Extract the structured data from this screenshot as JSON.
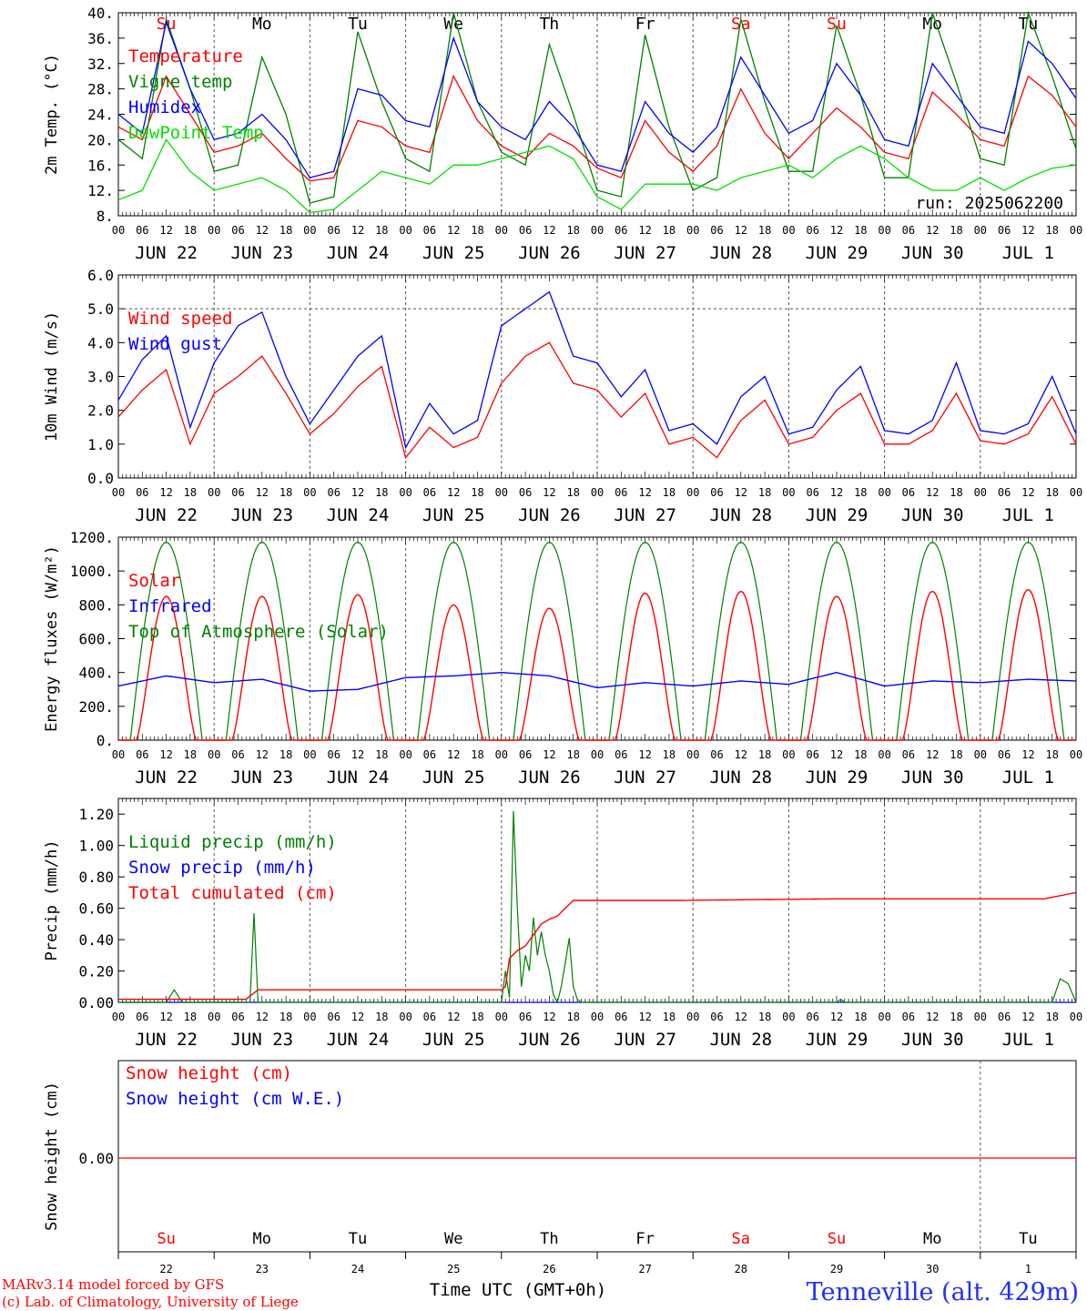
{
  "page": {
    "x_axis_title": "Time UTC (GMT+0h)",
    "station": "Tenneville (alt. 429m)",
    "credits": [
      "MARv3.14 model forced by GFS",
      "(c) Lab. of Climatology, University of Liege"
    ]
  },
  "colors": {
    "red": "#ff0000",
    "green": "#008000",
    "blue": "#0000ff",
    "lightgreen": "#00e000",
    "grey": "#808080"
  },
  "x_axis": {
    "hour_ticks": [
      "00",
      "06",
      "12",
      "18"
    ],
    "end_tick": "00",
    "date_labels": [
      "JUN 22",
      "JUN 23",
      "JUN 24",
      "JUN 25",
      "JUN 26",
      "JUN 27",
      "JUN 28",
      "JUN 29",
      "JUN 30",
      "JUL  1"
    ],
    "weekday_labels": [
      "Su",
      "Mo",
      "Tu",
      "We",
      "Th",
      "Fr",
      "Sa",
      "Su",
      "Mo",
      "Tu"
    ],
    "weekend_days": [
      0,
      6,
      7
    ],
    "day_numbers": [
      "22",
      "23",
      "24",
      "25",
      "26",
      "27",
      "28",
      "29",
      "30",
      "1"
    ]
  },
  "chart_data": [
    {
      "id": "temp",
      "type": "line",
      "ylabel": "2m Temp. (°C)",
      "ylim": [
        8,
        40
      ],
      "yticks": [
        "8.",
        "12.",
        "16.",
        "20.",
        "24.",
        "28.",
        "32.",
        "36.",
        "40."
      ],
      "annotation": "run: 2025062200",
      "legend": [
        {
          "name": "Temperature",
          "color": "#ff0000"
        },
        {
          "name": "Vigne temp",
          "color": "#008000"
        },
        {
          "name": "Humidex",
          "color": "#0000ff"
        },
        {
          "name": "DewPoint Temp",
          "color": "#00e000"
        }
      ],
      "x_hours": [
        0,
        6,
        12,
        18,
        24,
        30,
        36,
        42,
        48,
        54,
        60,
        66,
        72,
        78,
        84,
        90,
        96,
        102,
        108,
        114,
        120,
        126,
        132,
        138,
        144,
        150,
        156,
        162,
        168,
        174,
        180,
        186,
        192,
        198,
        204,
        210,
        216,
        222,
        228,
        234,
        240
      ],
      "series": [
        {
          "name": "Temperature",
          "color": "#ff0000",
          "values": [
            22,
            20,
            30,
            24,
            18,
            19,
            21,
            17,
            13.5,
            14,
            23,
            22,
            19,
            18,
            30,
            23,
            19,
            17,
            21,
            19,
            15.5,
            14,
            23,
            18,
            15,
            19,
            28,
            21,
            17,
            21,
            25,
            22,
            18,
            17,
            27.5,
            24,
            20,
            19,
            30,
            27,
            22
          ]
        },
        {
          "name": "Vigne temp",
          "color": "#008000",
          "values": [
            20,
            17,
            39,
            28,
            15,
            16,
            33,
            24,
            10,
            11,
            37,
            26,
            17,
            15,
            40,
            26,
            18,
            16,
            35,
            24,
            12,
            11,
            36.5,
            22,
            12,
            14,
            39,
            26,
            15,
            15,
            38,
            27,
            14,
            14,
            40,
            29,
            17,
            16,
            40,
            30,
            18.5
          ]
        },
        {
          "name": "Humidex",
          "color": "#0000ff",
          "values": [
            24,
            21,
            38.5,
            28,
            20,
            21,
            24,
            20,
            14,
            15,
            28,
            27,
            23,
            22,
            36,
            26,
            22,
            20,
            26,
            22,
            16,
            15,
            26,
            21,
            18,
            22,
            33,
            27,
            21,
            23,
            32,
            27,
            20,
            19,
            32,
            27,
            22,
            21,
            35.5,
            32,
            26.5
          ]
        },
        {
          "name": "DewPoint Temp",
          "color": "#00e000",
          "values": [
            10.5,
            12,
            20,
            15,
            12,
            13,
            14,
            12,
            8.5,
            9,
            12,
            15,
            14,
            13,
            16,
            16,
            17,
            18,
            19,
            17,
            11,
            9,
            13,
            13,
            13,
            12,
            14,
            15,
            16,
            14,
            17,
            19,
            17,
            14,
            12,
            12,
            14,
            12,
            14,
            15.5,
            16
          ]
        }
      ]
    },
    {
      "id": "wind",
      "type": "line",
      "ylabel": "10m Wind (m/s)",
      "ylim": [
        0,
        6
      ],
      "yticks": [
        "0.0",
        "1.0",
        "2.0",
        "3.0",
        "4.0",
        "5.0",
        "6.0"
      ],
      "ref_line": 5.0,
      "legend": [
        {
          "name": "Wind speed",
          "color": "#ff0000"
        },
        {
          "name": "Wind gust",
          "color": "#0000ff"
        }
      ],
      "x_hours": [
        0,
        6,
        12,
        18,
        24,
        30,
        36,
        42,
        48,
        54,
        60,
        66,
        72,
        78,
        84,
        90,
        96,
        102,
        108,
        114,
        120,
        126,
        132,
        138,
        144,
        150,
        156,
        162,
        168,
        174,
        180,
        186,
        192,
        198,
        204,
        210,
        216,
        222,
        228,
        234,
        240
      ],
      "series": [
        {
          "name": "Wind speed",
          "color": "#ff0000",
          "values": [
            1.8,
            2.6,
            3.2,
            1.0,
            2.5,
            3.0,
            3.6,
            2.5,
            1.3,
            1.9,
            2.7,
            3.3,
            0.6,
            1.5,
            0.9,
            1.2,
            2.8,
            3.6,
            4.0,
            2.8,
            2.6,
            1.8,
            2.5,
            1.0,
            1.2,
            0.6,
            1.7,
            2.3,
            1.0,
            1.2,
            2.0,
            2.5,
            1.0,
            1.0,
            1.4,
            2.5,
            1.1,
            1.0,
            1.3,
            2.4,
            1.0
          ]
        },
        {
          "name": "Wind gust",
          "color": "#0000ff",
          "values": [
            2.3,
            3.5,
            4.2,
            1.5,
            3.4,
            4.5,
            4.9,
            3.0,
            1.6,
            2.6,
            3.6,
            4.2,
            0.9,
            2.2,
            1.3,
            1.7,
            4.5,
            5.0,
            5.5,
            3.6,
            3.4,
            2.4,
            3.2,
            1.4,
            1.6,
            1.0,
            2.4,
            3.0,
            1.3,
            1.5,
            2.6,
            3.3,
            1.4,
            1.3,
            1.7,
            3.4,
            1.4,
            1.3,
            1.6,
            3.0,
            1.3
          ]
        }
      ]
    },
    {
      "id": "energy",
      "type": "line",
      "ylabel": "Energy fluxes (W/m²)",
      "ylim": [
        0,
        1200
      ],
      "yticks": [
        "0.",
        "200.",
        "400.",
        "600.",
        "800.",
        "1000.",
        "1200."
      ],
      "legend": [
        {
          "name": "Solar",
          "color": "#ff0000"
        },
        {
          "name": "Infrared",
          "color": "#0000ff"
        },
        {
          "name": "Top of Atmosphere (Solar)",
          "color": "#008000"
        }
      ],
      "solar_peaks": [
        850,
        850,
        860,
        800,
        780,
        870,
        880,
        850,
        880,
        890
      ],
      "toa_peak": 1170,
      "infrared_hours": [
        0,
        12,
        24,
        36,
        48,
        60,
        72,
        84,
        96,
        108,
        120,
        132,
        144,
        156,
        168,
        180,
        192,
        204,
        216,
        228,
        240
      ],
      "infrared_values": [
        320,
        380,
        340,
        360,
        290,
        300,
        370,
        380,
        400,
        380,
        310,
        340,
        320,
        350,
        330,
        400,
        320,
        350,
        340,
        360,
        350
      ]
    },
    {
      "id": "precip",
      "type": "line",
      "ylabel": "Precip (mm/h)",
      "ylim": [
        0,
        1.3
      ],
      "yticks": [
        "0.00",
        "0.20",
        "0.40",
        "0.60",
        "0.80",
        "1.00",
        "1.20"
      ],
      "legend": [
        {
          "name": "Liquid precip (mm/h)",
          "color": "#008000"
        },
        {
          "name": "Snow precip (mm/h)",
          "color": "#0000ff"
        },
        {
          "name": "Total cumulated (cm)",
          "color": "#ff0000"
        }
      ],
      "liquid_hours": [
        0,
        12,
        14,
        16,
        24,
        33,
        34,
        35,
        36,
        96,
        97,
        98,
        99,
        100,
        101,
        102,
        103,
        104,
        105,
        106,
        107,
        108,
        109,
        110,
        111,
        112,
        113,
        114,
        115,
        116,
        118,
        120,
        180,
        181,
        182,
        234,
        236,
        238,
        240
      ],
      "liquid_values": [
        0,
        0,
        0.08,
        0,
        0,
        0,
        0.57,
        0,
        0,
        0,
        0.2,
        0.03,
        1.22,
        0.6,
        0.1,
        0.3,
        0.2,
        0.54,
        0.3,
        0.45,
        0.3,
        0.2,
        0.05,
        0,
        0.1,
        0.25,
        0.41,
        0.1,
        0.02,
        0,
        0,
        0,
        0,
        0.02,
        0,
        0,
        0.15,
        0.12,
        0
      ],
      "cumulated_hours": [
        0,
        32,
        35,
        90,
        96,
        97,
        98,
        100,
        102,
        104,
        106,
        108,
        110,
        112,
        114,
        140,
        180,
        232,
        236,
        240
      ],
      "cumulated_values": [
        0.02,
        0.02,
        0.08,
        0.08,
        0.08,
        0.1,
        0.28,
        0.33,
        0.36,
        0.43,
        0.5,
        0.53,
        0.55,
        0.6,
        0.65,
        0.65,
        0.66,
        0.66,
        0.68,
        0.7
      ]
    },
    {
      "id": "snow",
      "type": "line",
      "ylabel": "Snow height (cm)",
      "yticks": [
        "0.00"
      ],
      "legend": [
        {
          "name": "Snow height (cm)",
          "color": "#ff0000"
        },
        {
          "name": "Snow height (cm W.E.)",
          "color": "#0000ff"
        }
      ],
      "series": [
        {
          "name": "Snow height (cm)",
          "color": "#ff0000",
          "values": [
            0,
            0
          ]
        }
      ]
    }
  ]
}
